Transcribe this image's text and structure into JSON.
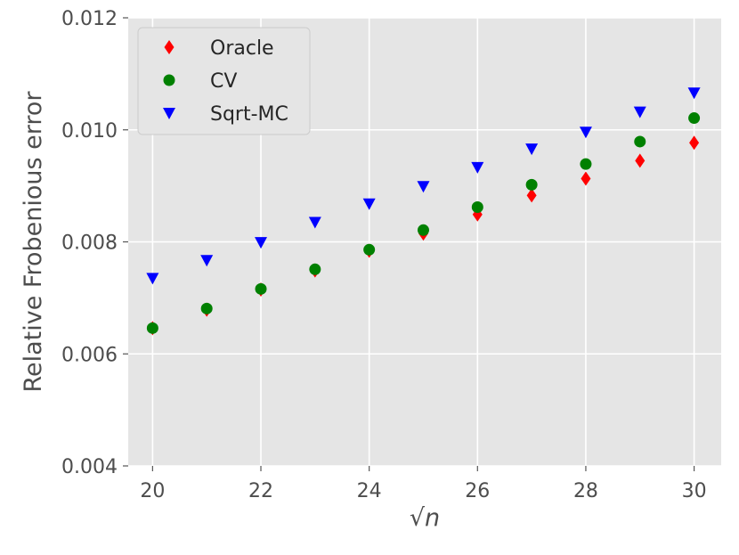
{
  "chart_data": {
    "type": "scatter",
    "title": "",
    "xlabel": "√n",
    "ylabel": "Relative Frobenious error",
    "xlim": [
      19.55,
      30.5
    ],
    "ylim": [
      0.004,
      0.012
    ],
    "xticks": [
      20,
      22,
      24,
      26,
      28,
      30
    ],
    "xtick_labels": [
      "20",
      "22",
      "24",
      "26",
      "28",
      "30"
    ],
    "yticks": [
      0.004,
      0.006,
      0.008,
      0.01,
      0.012
    ],
    "ytick_labels": [
      "0.004",
      "0.006",
      "0.008",
      "0.010",
      "0.012"
    ],
    "grid": true,
    "legend_position": "top-left",
    "x": [
      20,
      21,
      22,
      23,
      24,
      25,
      26,
      27,
      28,
      29,
      30
    ],
    "series": [
      {
        "name": "Oracle",
        "marker": "diamond",
        "color": "#ff0000",
        "values": [
          0.00646,
          0.00679,
          0.00715,
          0.00749,
          0.00784,
          0.00815,
          0.00849,
          0.00883,
          0.00913,
          0.00945,
          0.00977
        ]
      },
      {
        "name": "CV",
        "marker": "circle",
        "color": "#008000",
        "values": [
          0.00646,
          0.00681,
          0.00716,
          0.00751,
          0.00786,
          0.00821,
          0.00862,
          0.00902,
          0.00939,
          0.00979,
          0.01021
        ]
      },
      {
        "name": "Sqrt-MC",
        "marker": "triangle-down",
        "color": "#0000ff",
        "values": [
          0.00735,
          0.00767,
          0.00799,
          0.00835,
          0.00868,
          0.00899,
          0.00933,
          0.00966,
          0.00996,
          0.01032,
          0.01066
        ]
      }
    ]
  }
}
